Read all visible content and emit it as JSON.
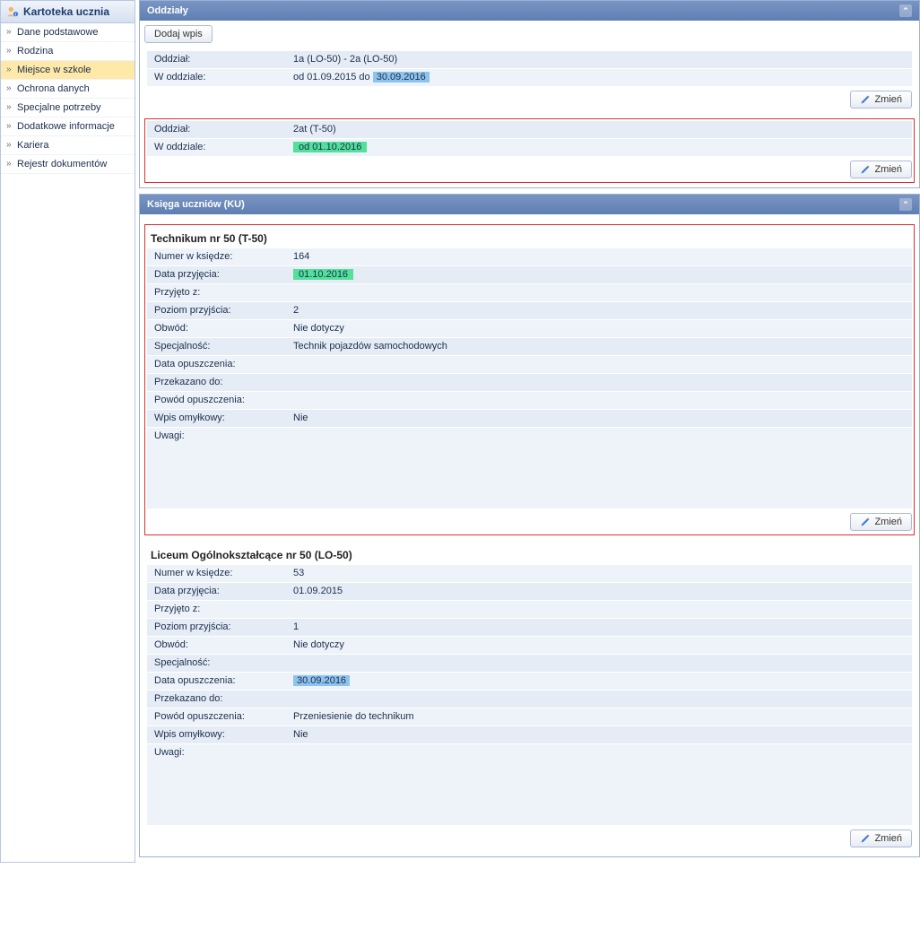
{
  "sidebar": {
    "title": "Kartoteka ucznia",
    "items": [
      {
        "label": "Dane podstawowe"
      },
      {
        "label": "Rodzina"
      },
      {
        "label": "Miejsce w szkole",
        "active": true
      },
      {
        "label": "Ochrona danych"
      },
      {
        "label": "Specjalne potrzeby"
      },
      {
        "label": "Dodatkowe informacje"
      },
      {
        "label": "Kariera"
      },
      {
        "label": "Rejestr dokumentów"
      }
    ]
  },
  "panel1": {
    "title": "Oddziały",
    "addBtn": "Dodaj wpis",
    "changeBtn": "Zmień",
    "labels": {
      "oddzial": "Oddział:",
      "wOddziale": "W oddziale:"
    },
    "entries": [
      {
        "oddzial": "1a (LO-50) - 2a (LO-50)",
        "wOddzialePrefix": "od 01.09.2015 do ",
        "wOddzialeHl": "30.09.2016",
        "hlClass": "highlight-blue",
        "highlighted": false
      },
      {
        "oddzial": "2at (T-50)",
        "wOddzialePrefix": "",
        "wOddzialeHl": "od 01.10.2016",
        "hlClass": "highlight-green",
        "highlighted": true
      }
    ]
  },
  "panel2": {
    "title": "Księga uczniów (KU)",
    "changeBtn": "Zmień",
    "labels": {
      "numer": "Numer w księdze:",
      "dataPrzyjecia": "Data przyjęcia:",
      "przyjetoZ": "Przyjęto z:",
      "poziom": "Poziom przyjścia:",
      "obwod": "Obwód:",
      "specjalnosc": "Specjalność:",
      "dataOpuszczenia": "Data opuszczenia:",
      "przekazanoDo": "Przekazano do:",
      "powod": "Powód opuszczenia:",
      "wpisOmylkowy": "Wpis omyłkowy:",
      "uwagi": "Uwagi:"
    },
    "books": [
      {
        "title": "Technikum nr 50 (T-50)",
        "highlighted": true,
        "numer": "164",
        "dataPrzyjecia": "01.10.2016",
        "dataPrzyjeciaHl": "highlight-green",
        "przyjetoZ": "",
        "poziom": "2",
        "obwod": "Nie dotyczy",
        "specjalnosc": "Technik pojazdów samochodowych",
        "dataOpuszczenia": "",
        "dataOpuszczeniaHl": "",
        "przekazanoDo": "",
        "powod": "",
        "wpisOmylkowy": "Nie",
        "uwagi": ""
      },
      {
        "title": "Liceum Ogólnokształcące nr 50 (LO-50)",
        "highlighted": false,
        "numer": "53",
        "dataPrzyjecia": "01.09.2015",
        "dataPrzyjeciaHl": "",
        "przyjetoZ": "",
        "poziom": "1",
        "obwod": "Nie dotyczy",
        "specjalnosc": "",
        "dataOpuszczenia": "30.09.2016",
        "dataOpuszczeniaHl": "highlight-blue",
        "przekazanoDo": "",
        "powod": "Przeniesienie do technikum",
        "wpisOmylkowy": "Nie",
        "uwagi": ""
      }
    ]
  },
  "colors": {
    "headerGrad1": "#7a95c2",
    "headerGrad2": "#5e7fb3",
    "rowBg": "#e5ecf5",
    "highlightBorder": "#d93030",
    "activeNav": "#ffe9a8"
  }
}
